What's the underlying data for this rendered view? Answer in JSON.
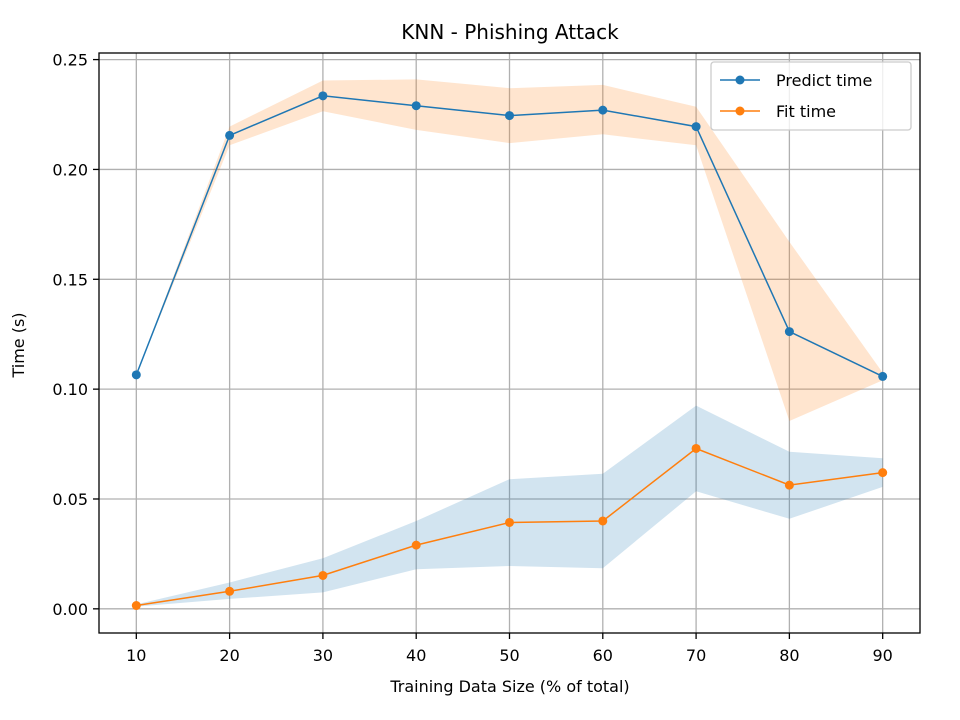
{
  "chart_data": {
    "type": "line",
    "title": "KNN - Phishing Attack",
    "xlabel": "Training Data Size (% of total)",
    "ylabel": "Time (s)",
    "x": [
      10,
      20,
      30,
      40,
      50,
      60,
      70,
      80,
      90
    ],
    "xlim": [
      6,
      94
    ],
    "ylim": [
      -0.011,
      0.253
    ],
    "xticks": [
      10,
      20,
      30,
      40,
      50,
      60,
      70,
      80,
      90
    ],
    "yticks": [
      0.0,
      0.05,
      0.1,
      0.15,
      0.2,
      0.25
    ],
    "ytick_labels": [
      "0.00",
      "0.05",
      "0.10",
      "0.15",
      "0.20",
      "0.25"
    ],
    "grid": true,
    "legend_position": "top-right",
    "series": [
      {
        "name": "Predict time",
        "color": "#1f77b4",
        "values": [
          0.1065,
          0.2155,
          0.2335,
          0.229,
          0.2245,
          0.227,
          0.2195,
          0.1262,
          0.1058
        ],
        "band": {
          "color": "#ff7f0e",
          "lower": [
            0.1065,
            0.211,
            0.2265,
            0.218,
            0.212,
            0.216,
            0.211,
            0.0855,
            0.104
          ],
          "upper": [
            0.1065,
            0.2195,
            0.2405,
            0.241,
            0.237,
            0.2385,
            0.2285,
            0.167,
            0.1075
          ]
        }
      },
      {
        "name": "Fit time",
        "color": "#ff7f0e",
        "values": [
          0.0015,
          0.008,
          0.0152,
          0.029,
          0.0393,
          0.04,
          0.073,
          0.0563,
          0.062
        ],
        "band": {
          "color": "#1f77b4",
          "lower": [
            0.001,
            0.0045,
            0.0075,
            0.018,
            0.0195,
            0.0185,
            0.0535,
            0.041,
            0.0555
          ],
          "upper": [
            0.002,
            0.012,
            0.023,
            0.04,
            0.059,
            0.0615,
            0.0925,
            0.0715,
            0.0685
          ]
        }
      }
    ]
  }
}
